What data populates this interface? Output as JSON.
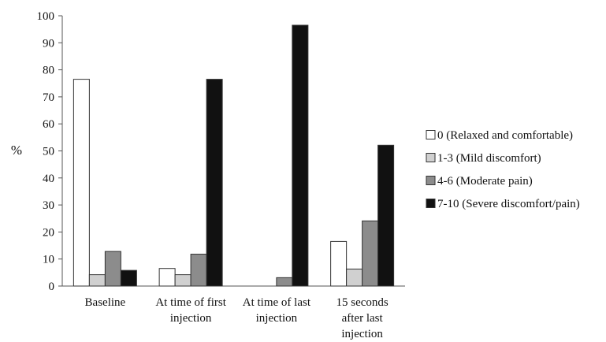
{
  "chart_data": {
    "type": "bar",
    "title": "",
    "xlabel": "",
    "ylabel": "%",
    "ylim": [
      0,
      100
    ],
    "yticks": [
      0,
      10,
      20,
      30,
      40,
      50,
      60,
      70,
      80,
      90,
      100
    ],
    "grid": false,
    "legend_position": "right",
    "categories": [
      [
        "Baseline"
      ],
      [
        "At time of first",
        "injection"
      ],
      [
        "At time of last",
        "injection"
      ],
      [
        "15 seconds",
        "after last",
        "injection"
      ]
    ],
    "series": [
      {
        "name": "0 (Relaxed and comfortable)",
        "color": "#ffffff",
        "values": [
          76.5,
          6.5,
          0,
          16.5
        ]
      },
      {
        "name": "1-3 (Mild discomfort)",
        "color": "#d0d0d0",
        "values": [
          4.2,
          4.2,
          0,
          6.3
        ]
      },
      {
        "name": "4-6 (Moderate pain)",
        "color": "#8c8c8c",
        "values": [
          12.8,
          11.8,
          3.1,
          24.1
        ]
      },
      {
        "name": "7-10 (Severe discomfort/pain)",
        "color": "#111111",
        "values": [
          5.8,
          76.5,
          96.5,
          52.1
        ]
      }
    ]
  }
}
